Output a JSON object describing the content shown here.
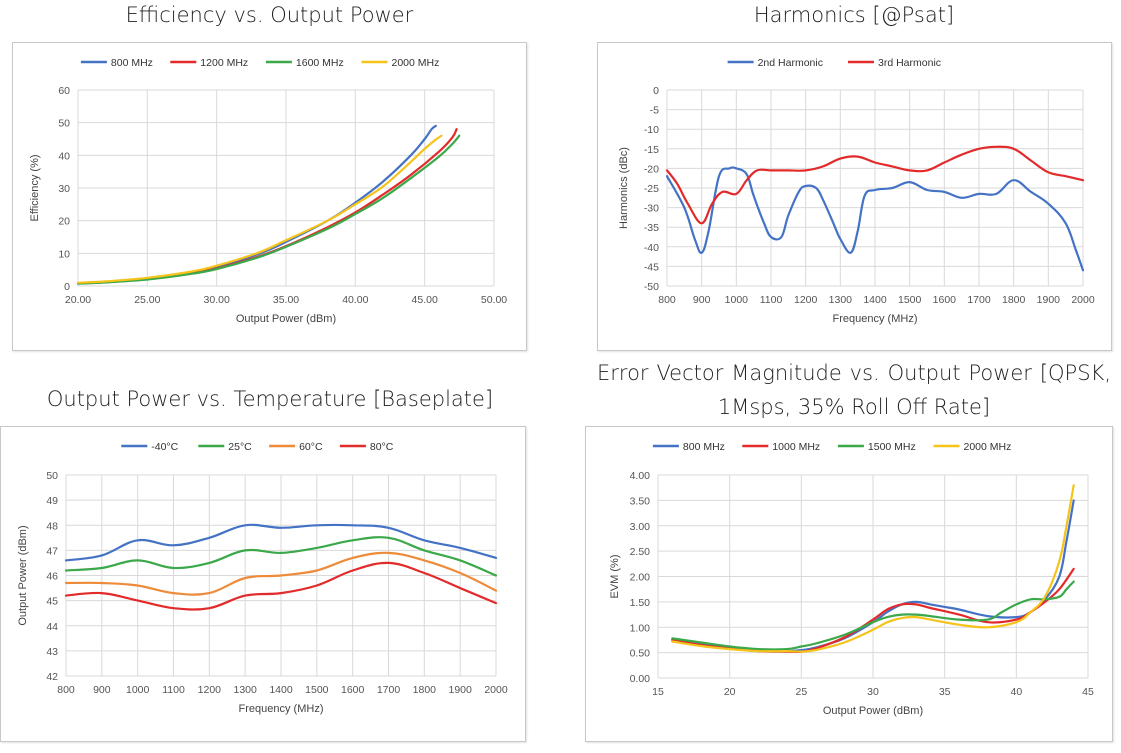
{
  "chart_data": [
    {
      "id": "c1",
      "type": "line",
      "title": "Efficiency vs. Output Power",
      "xlabel": "Output Power (dBm)",
      "ylabel": "Efficiency (%)",
      "xlim": [
        20,
        50
      ],
      "ylim": [
        0,
        60
      ],
      "xticks": [
        "20.00",
        "25.00",
        "30.00",
        "35.00",
        "40.00",
        "45.00",
        "50.00"
      ],
      "yticks": [
        "0",
        "10",
        "20",
        "30",
        "40",
        "50",
        "60"
      ],
      "legend": "top",
      "series": [
        {
          "name": "800 MHz",
          "color": "#4472C4",
          "x": [
            20,
            22,
            25,
            28,
            30,
            33,
            35,
            38,
            40,
            42,
            44,
            45,
            45.5,
            45.8
          ],
          "values": [
            0.8,
            1.2,
            2.2,
            4,
            5.8,
            9.8,
            13.5,
            20,
            25.5,
            32,
            40,
            45,
            48,
            49
          ]
        },
        {
          "name": "1200 MHz",
          "color": "#E32A2A",
          "x": [
            20,
            22,
            25,
            28,
            30,
            33,
            35,
            38,
            40,
            42,
            44,
            46,
            47,
            47.3
          ],
          "values": [
            0.8,
            1.2,
            2.1,
            3.8,
            5.4,
            9,
            12.2,
            18,
            22.5,
            28,
            34,
            41,
            45.5,
            48
          ]
        },
        {
          "name": "1600 MHz",
          "color": "#3BA84A",
          "x": [
            20,
            22,
            25,
            28,
            30,
            33,
            35,
            38,
            40,
            42,
            44,
            46,
            47,
            47.5
          ],
          "values": [
            0.7,
            1.1,
            2,
            3.6,
            5.2,
            8.8,
            12,
            17.5,
            22,
            27,
            33,
            39.5,
            43.5,
            46
          ]
        },
        {
          "name": "2000 MHz",
          "color": "#F5C31A",
          "x": [
            20,
            22,
            25,
            28,
            30,
            33,
            35,
            38,
            40,
            42,
            44,
            45,
            45.7,
            46.2
          ],
          "values": [
            1,
            1.4,
            2.5,
            4.3,
            6.2,
            10.2,
            14,
            20,
            25,
            30.5,
            38,
            42,
            44.5,
            46
          ]
        }
      ]
    },
    {
      "id": "c2",
      "type": "line",
      "title": "Harmonics [@Psat]",
      "xlabel": "Frequency (MHz)",
      "ylabel": "Harmonics (dBc)",
      "xlim": [
        800,
        2000
      ],
      "ylim": [
        -50,
        0
      ],
      "xticks": [
        "800",
        "900",
        "1000",
        "1100",
        "1200",
        "1300",
        "1400",
        "1500",
        "1600",
        "1700",
        "1800",
        "1900",
        "2000"
      ],
      "yticks": [
        "0",
        "-5",
        "-10",
        "-15",
        "-20",
        "-25",
        "-30",
        "-35",
        "-40",
        "-45",
        "-50"
      ],
      "legend": "top",
      "series": [
        {
          "name": "2nd Harmonic",
          "color": "#4472C4",
          "x": [
            800,
            850,
            880,
            900,
            920,
            950,
            980,
            1000,
            1030,
            1050,
            1080,
            1100,
            1130,
            1150,
            1180,
            1200,
            1230,
            1250,
            1280,
            1300,
            1330,
            1350,
            1370,
            1400,
            1450,
            1500,
            1550,
            1600,
            1650,
            1700,
            1750,
            1800,
            1850,
            1900,
            1950,
            1980,
            2000
          ],
          "values": [
            -22,
            -30,
            -38,
            -41.5,
            -36,
            -22,
            -20,
            -20,
            -21.5,
            -27,
            -34,
            -37.5,
            -37.5,
            -32,
            -26,
            -24.5,
            -25,
            -28,
            -34,
            -38,
            -41.5,
            -36,
            -27,
            -25.5,
            -25,
            -23.5,
            -25.5,
            -26,
            -27.5,
            -26.5,
            -26.5,
            -23,
            -26,
            -29,
            -34,
            -41,
            -46
          ]
        },
        {
          "name": "3rd Harmonic",
          "color": "#E32A2A",
          "x": [
            800,
            830,
            860,
            900,
            930,
            960,
            1000,
            1030,
            1060,
            1100,
            1150,
            1200,
            1250,
            1300,
            1350,
            1400,
            1450,
            1500,
            1550,
            1600,
            1650,
            1700,
            1750,
            1800,
            1850,
            1900,
            1950,
            2000
          ],
          "values": [
            -20.5,
            -24,
            -29,
            -34,
            -29,
            -26,
            -26.5,
            -23,
            -20.5,
            -20.5,
            -20.5,
            -20.5,
            -19.5,
            -17.5,
            -17,
            -18.5,
            -19.5,
            -20.5,
            -20.5,
            -18.5,
            -16.5,
            -15,
            -14.5,
            -15,
            -18,
            -21,
            -22,
            -23
          ]
        }
      ]
    },
    {
      "id": "c3",
      "type": "line",
      "title": "Output Power vs. Temperature [Baseplate]",
      "xlabel": "Frequency (MHz)",
      "ylabel": "Output Power (dBm)",
      "xlim": [
        800,
        2000
      ],
      "ylim": [
        42,
        50
      ],
      "xticks": [
        "800",
        "900",
        "1000",
        "1100",
        "1200",
        "1300",
        "1400",
        "1500",
        "1600",
        "1700",
        "1800",
        "1900",
        "2000"
      ],
      "yticks": [
        "42",
        "43",
        "44",
        "45",
        "46",
        "47",
        "48",
        "49",
        "50"
      ],
      "legend": "top",
      "series": [
        {
          "name": "-40°C",
          "color": "#4472C4",
          "x": [
            800,
            900,
            1000,
            1100,
            1200,
            1300,
            1400,
            1500,
            1600,
            1700,
            1800,
            1900,
            2000
          ],
          "values": [
            46.6,
            46.8,
            47.4,
            47.2,
            47.5,
            48.0,
            47.9,
            48.0,
            48.0,
            47.9,
            47.4,
            47.1,
            46.7
          ]
        },
        {
          "name": "25°C",
          "color": "#3BA84A",
          "x": [
            800,
            900,
            1000,
            1100,
            1200,
            1300,
            1400,
            1500,
            1600,
            1700,
            1800,
            1900,
            2000
          ],
          "values": [
            46.2,
            46.3,
            46.6,
            46.3,
            46.5,
            47.0,
            46.9,
            47.1,
            47.4,
            47.5,
            47.0,
            46.6,
            46.0
          ]
        },
        {
          "name": "60°C",
          "color": "#ED8B3A",
          "x": [
            800,
            900,
            1000,
            1100,
            1200,
            1300,
            1400,
            1500,
            1600,
            1700,
            1800,
            1900,
            2000
          ],
          "values": [
            45.7,
            45.7,
            45.6,
            45.3,
            45.3,
            45.9,
            46.0,
            46.2,
            46.7,
            46.9,
            46.6,
            46.1,
            45.4
          ]
        },
        {
          "name": "80°C",
          "color": "#E32A2A",
          "x": [
            800,
            900,
            1000,
            1100,
            1200,
            1300,
            1400,
            1500,
            1600,
            1700,
            1800,
            1900,
            2000
          ],
          "values": [
            45.2,
            45.3,
            45.0,
            44.7,
            44.7,
            45.2,
            45.3,
            45.6,
            46.2,
            46.5,
            46.1,
            45.5,
            44.9
          ]
        }
      ]
    },
    {
      "id": "c4",
      "type": "line",
      "title": "Error Vector Magnitude vs. Output Power [QPSK, 1Msps, 35% Roll Off Rate]",
      "xlabel": "Output Power (dBm)",
      "ylabel": "EVM (%)",
      "xlim": [
        15,
        45
      ],
      "ylim": [
        0,
        4
      ],
      "xticks": [
        "15",
        "20",
        "25",
        "30",
        "35",
        "40",
        "45"
      ],
      "yticks": [
        "0.00",
        "0.50",
        "1.00",
        "1.50",
        "2.00",
        "2.50",
        "3.00",
        "3.50",
        "4.00"
      ],
      "legend": "top",
      "series": [
        {
          "name": "800 MHz",
          "color": "#4472C4",
          "x": [
            16,
            18,
            20,
            22,
            24,
            25,
            26,
            28,
            30,
            31,
            32,
            33,
            34,
            35,
            36,
            38,
            40,
            41,
            42,
            43,
            43.5,
            44
          ],
          "values": [
            0.75,
            0.68,
            0.6,
            0.55,
            0.53,
            0.55,
            0.6,
            0.78,
            1.1,
            1.3,
            1.45,
            1.5,
            1.45,
            1.4,
            1.35,
            1.22,
            1.2,
            1.3,
            1.55,
            2.0,
            2.7,
            3.5
          ]
        },
        {
          "name": "1000 MHz",
          "color": "#E32A2A",
          "x": [
            16,
            18,
            20,
            22,
            24,
            25,
            26,
            28,
            30,
            31,
            32,
            33,
            34,
            36,
            38,
            40,
            41,
            42,
            43,
            44
          ],
          "values": [
            0.75,
            0.65,
            0.58,
            0.53,
            0.52,
            0.52,
            0.58,
            0.8,
            1.15,
            1.35,
            1.45,
            1.45,
            1.38,
            1.25,
            1.1,
            1.15,
            1.3,
            1.5,
            1.75,
            2.15
          ]
        },
        {
          "name": "1500 MHz",
          "color": "#3BA84A",
          "x": [
            16,
            18,
            20,
            22,
            24,
            25,
            26,
            28,
            30,
            31,
            32,
            33,
            34,
            36,
            38,
            39,
            40,
            41,
            42,
            43,
            43.5,
            44
          ],
          "values": [
            0.78,
            0.7,
            0.62,
            0.57,
            0.57,
            0.62,
            0.68,
            0.85,
            1.1,
            1.2,
            1.25,
            1.25,
            1.22,
            1.15,
            1.15,
            1.3,
            1.45,
            1.55,
            1.55,
            1.6,
            1.75,
            1.9
          ]
        },
        {
          "name": "2000 MHz",
          "color": "#F5C31A",
          "x": [
            16,
            18,
            20,
            22,
            24,
            25,
            26,
            28,
            30,
            31,
            32,
            33,
            34,
            36,
            38,
            40,
            41,
            42,
            43,
            43.5,
            44
          ],
          "values": [
            0.72,
            0.63,
            0.57,
            0.53,
            0.53,
            0.52,
            0.55,
            0.7,
            0.95,
            1.1,
            1.18,
            1.2,
            1.15,
            1.05,
            1.0,
            1.1,
            1.3,
            1.6,
            2.3,
            3.0,
            3.8
          ]
        }
      ]
    }
  ]
}
